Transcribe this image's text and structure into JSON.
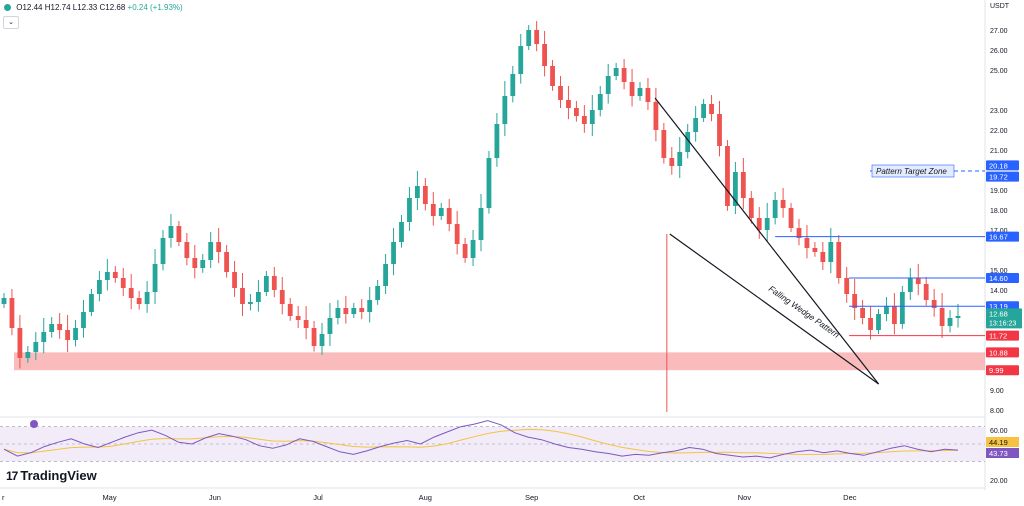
{
  "header": {
    "open_label": "O",
    "open": "12.44",
    "high_label": "H",
    "high": "12.74",
    "low_label": "L",
    "low": "12.33",
    "close_label": "C",
    "close": "12.68",
    "change": "+0.24 (+1.93%)",
    "collapse_icon": "chevron-down-icon"
  },
  "currency": "USDT",
  "brand": {
    "logo_text": "TradingView",
    "logo_mark": "17"
  },
  "colors": {
    "up": "#26a69a",
    "down": "#ef5350",
    "support_zone": "#f7a4a6",
    "rsi": "#7e57c2",
    "rsi_ma": "#f5c242",
    "rsi_band": "#ede7f6",
    "level_line": "#2962ff",
    "last_price": "#26a69a",
    "red_label": "#f23645",
    "wedge": "#131722"
  },
  "chart_data": {
    "type": "candlestick",
    "y_axis": {
      "min": 8,
      "max": 27.8,
      "ticks": [
        "27.00",
        "26.00",
        "25.00",
        "23.00",
        "22.00",
        "21.00",
        "19.00",
        "18.00",
        "17.00",
        "15.00",
        "14.00",
        "9.00",
        "8.00"
      ]
    },
    "x_axis": {
      "labels": [
        {
          "label": "r",
          "x": 0.002
        },
        {
          "label": "May",
          "x": 0.104
        },
        {
          "label": "Jun",
          "x": 0.212
        },
        {
          "label": "Jul",
          "x": 0.318
        },
        {
          "label": "Aug",
          "x": 0.425
        },
        {
          "label": "Sep",
          "x": 0.533
        },
        {
          "label": "Oct",
          "x": 0.643
        },
        {
          "label": "Nov",
          "x": 0.749
        },
        {
          "label": "Dec",
          "x": 0.856
        }
      ]
    },
    "price_path": [
      13.6,
      12.1,
      10.6,
      10.9,
      11.4,
      11.9,
      12.3,
      12.0,
      11.5,
      12.1,
      12.9,
      13.8,
      14.5,
      14.9,
      14.6,
      14.1,
      13.6,
      13.3,
      13.9,
      15.3,
      16.6,
      17.2,
      16.4,
      15.6,
      15.1,
      15.5,
      16.4,
      15.9,
      14.9,
      14.1,
      13.3,
      13.4,
      13.9,
      14.7,
      14.0,
      13.3,
      12.7,
      12.5,
      12.1,
      11.2,
      11.8,
      12.6,
      13.1,
      12.8,
      13.1,
      12.9,
      13.5,
      14.2,
      15.3,
      16.4,
      17.4,
      18.6,
      19.2,
      18.3,
      17.7,
      18.1,
      17.3,
      16.3,
      15.6,
      16.5,
      18.1,
      20.6,
      22.3,
      23.7,
      24.8,
      26.2,
      27.0,
      26.3,
      25.2,
      24.2,
      23.5,
      23.1,
      22.7,
      22.3,
      23.0,
      23.8,
      24.7,
      25.1,
      24.4,
      23.7,
      24.1,
      23.4,
      22.0,
      20.6,
      20.2,
      20.9,
      21.9,
      22.6,
      23.3,
      22.8,
      21.2,
      18.2,
      19.9,
      18.6,
      17.6,
      17.0,
      17.6,
      18.5,
      18.1,
      17.1,
      16.6,
      16.1,
      15.9,
      15.4,
      16.4,
      14.6,
      13.8,
      13.1,
      12.6,
      12.0,
      12.8,
      13.2,
      12.3,
      13.9,
      14.6,
      14.3,
      13.5,
      13.1,
      12.2,
      12.6,
      12.7
    ],
    "levels": [
      {
        "label": "16.67",
        "value": 16.67,
        "color": "#2962ff",
        "start_x": 0.787
      },
      {
        "label": "14.60",
        "value": 14.6,
        "color": "#2962ff",
        "start_x": 0.862
      },
      {
        "label": "13.19",
        "value": 13.19,
        "color": "#2962ff",
        "start_x": 0.862
      },
      {
        "label": "11.72",
        "value": 11.72,
        "color": "#f23645",
        "start_x": 0.862
      }
    ],
    "last_price": {
      "value": "12.68",
      "countdown": "13:16:23"
    },
    "support_zone": {
      "top": "10.88",
      "bottom": "9.99",
      "top_value": 10.88,
      "bottom_value": 9.99
    },
    "target_zone": {
      "label": "Pattern Target Zone",
      "top": "20.18",
      "bottom": "19.72",
      "top_value": 20.18,
      "bottom_value": 19.72
    },
    "wedge": {
      "label": "Falling Wedge Pattern",
      "upper": [
        [
          0.665,
          23.6
        ],
        [
          0.892,
          9.3
        ]
      ],
      "lower": [
        [
          0.68,
          16.8
        ],
        [
          0.892,
          9.3
        ]
      ]
    },
    "spike": {
      "x": 0.677,
      "from": 16.8,
      "to": 7.9
    },
    "rsi": {
      "y_ticks": [
        "60.00",
        "20.00"
      ],
      "value": "44.19",
      "ma": "43.73",
      "series": [
        44,
        36,
        40,
        47,
        52,
        56,
        50,
        46,
        52,
        58,
        63,
        66,
        60,
        52,
        50,
        57,
        62,
        59,
        55,
        48,
        45,
        49,
        56,
        53,
        47,
        41,
        38,
        42,
        47,
        51,
        54,
        50,
        58,
        64,
        70,
        73,
        77,
        72,
        63,
        58,
        55,
        50,
        46,
        44,
        41,
        39,
        36,
        38,
        37,
        40,
        42,
        46,
        44,
        39,
        37,
        35,
        36,
        34,
        38,
        41,
        43,
        40,
        42,
        39,
        37,
        41,
        45,
        48,
        44,
        41,
        44,
        43
      ]
    }
  }
}
